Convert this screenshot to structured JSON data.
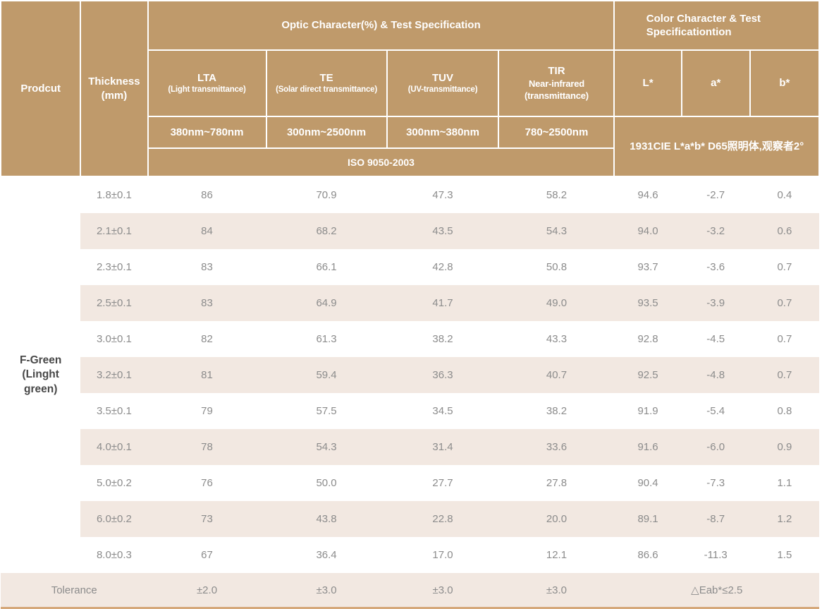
{
  "colors": {
    "header_bg": "#BF9A6B",
    "stripe_bg": "#F2E8E1",
    "body_text": "#8C8C8C",
    "product_text": "#474747",
    "bottom_border": "#D5A87A"
  },
  "table": {
    "header": {
      "product_label": "Prodcut",
      "thickness_label": "Thickness (mm)",
      "optic_group": "Optic Character(%) & Test Specification",
      "color_group": "Color Character & Test Specificationtion",
      "optic_columns": [
        {
          "name": "LTA",
          "sub": "(Light transmittance)",
          "range": "380nm~780nm"
        },
        {
          "name": "TE",
          "sub": "(Solar direct transmittance)",
          "range": "300nm~2500nm"
        },
        {
          "name": "TUV",
          "sub": "(UV-transmittance)",
          "range": "300nm~380nm"
        },
        {
          "name": "TIR",
          "sub": "Near-infrared (transmittance)",
          "range": "780~2500nm"
        }
      ],
      "color_columns": [
        "L*",
        "a*",
        "b*"
      ],
      "iso_standard": "ISO 9050-2003",
      "cie_standard": "1931CIE L*a*b*  D65照明体,观察者2°"
    },
    "product": "F-Green (Linght green)",
    "rows": [
      {
        "thickness": "1.8±0.1",
        "values": [
          "86",
          "70.9",
          "47.3",
          "58.2",
          "94.6",
          "-2.7",
          "0.4"
        ]
      },
      {
        "thickness": "2.1±0.1",
        "values": [
          "84",
          "68.2",
          "43.5",
          "54.3",
          "94.0",
          "-3.2",
          "0.6"
        ]
      },
      {
        "thickness": "2.3±0.1",
        "values": [
          "83",
          "66.1",
          "42.8",
          "50.8",
          "93.7",
          "-3.6",
          "0.7"
        ]
      },
      {
        "thickness": "2.5±0.1",
        "values": [
          "83",
          "64.9",
          "41.7",
          "49.0",
          "93.5",
          "-3.9",
          "0.7"
        ]
      },
      {
        "thickness": "3.0±0.1",
        "values": [
          "82",
          "61.3",
          "38.2",
          "43.3",
          "92.8",
          "-4.5",
          "0.7"
        ]
      },
      {
        "thickness": "3.2±0.1",
        "values": [
          "81",
          "59.4",
          "36.3",
          "40.7",
          "92.5",
          "-4.8",
          "0.7"
        ]
      },
      {
        "thickness": "3.5±0.1",
        "values": [
          "79",
          "57.5",
          "34.5",
          "38.2",
          "91.9",
          "-5.4",
          "0.8"
        ]
      },
      {
        "thickness": "4.0±0.1",
        "values": [
          "78",
          "54.3",
          "31.4",
          "33.6",
          "91.6",
          "-6.0",
          "0.9"
        ]
      },
      {
        "thickness": "5.0±0.2",
        "values": [
          "76",
          "50.0",
          "27.7",
          "27.8",
          "90.4",
          "-7.3",
          "1.1"
        ]
      },
      {
        "thickness": "6.0±0.2",
        "values": [
          "73",
          "43.8",
          "22.8",
          "20.0",
          "89.1",
          "-8.7",
          "1.2"
        ]
      },
      {
        "thickness": "8.0±0.3",
        "values": [
          "67",
          "36.4",
          "17.0",
          "12.1",
          "86.6",
          "-11.3",
          "1.5"
        ]
      }
    ],
    "tolerance": {
      "label": "Tolerance",
      "values": [
        "±2.0",
        "±3.0",
        "±3.0",
        "±3.0"
      ],
      "color_value": "△Eab*≤2.5"
    }
  }
}
